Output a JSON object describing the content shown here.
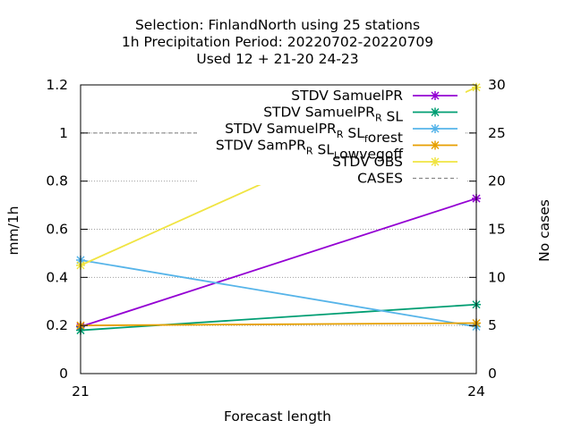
{
  "chart_data": {
    "type": "line",
    "title_lines": [
      "Selection: FinlandNorth using    25 stations",
      "1h Precipitation   Period: 20220702-20220709",
      "Used  12 + 21-20 24-23"
    ],
    "xlabel": "Forecast length",
    "ylabel": "mm/1h",
    "y2label": "No cases",
    "x": [
      21,
      24
    ],
    "xticks": [
      "21",
      "24"
    ],
    "ylim": [
      0,
      1.2
    ],
    "yticks": [
      "0",
      "0.2",
      "0.4",
      "0.6",
      "0.8",
      "1",
      "1.2"
    ],
    "y2lim": [
      0,
      30
    ],
    "y2ticks": [
      "0",
      "5",
      "10",
      "15",
      "20",
      "25",
      "30"
    ],
    "grid": true,
    "legend_position": "top-right",
    "series": [
      {
        "name": "STDV SamuelPR",
        "name_parts": [
          [
            "STDV SamuelPR",
            "n"
          ]
        ],
        "values": [
          0.195,
          0.728
        ],
        "color": "#9400d3",
        "dash": ""
      },
      {
        "name": "STDV SamuelPR_R SL",
        "name_parts": [
          [
            "STDV SamuelPR",
            "n"
          ],
          [
            "R",
            "sub"
          ],
          [
            " SL",
            "n"
          ]
        ],
        "values": [
          0.18,
          0.287
        ],
        "color": "#009e73",
        "dash": ""
      },
      {
        "name": "STDV SamuelPR_R SL_forest",
        "name_parts": [
          [
            "STDV SamuelPR",
            "n"
          ],
          [
            "R",
            "sub"
          ],
          [
            " SL",
            "n"
          ],
          [
            "f",
            "sub"
          ],
          [
            "orest",
            "n"
          ]
        ],
        "values": [
          0.472,
          0.195
        ],
        "color": "#56b4e9",
        "dash": ""
      },
      {
        "name": "STDV SamPR_R SL_Lowvegoff",
        "name_parts": [
          [
            "STDV SamPR",
            "n"
          ],
          [
            "R",
            "sub"
          ],
          [
            " SL",
            "n"
          ],
          [
            "L",
            "sub"
          ],
          [
            "owvegoff",
            "n"
          ]
        ],
        "values": [
          0.2,
          0.21
        ],
        "color": "#e69f00",
        "dash": ""
      },
      {
        "name": "STDV OBS",
        "name_parts": [
          [
            "STDV OBS",
            "n"
          ]
        ],
        "values": [
          0.45,
          1.19
        ],
        "color": "#f0e442",
        "dash": ""
      },
      {
        "name": "CASES",
        "name_parts": [
          [
            "CASES",
            "n"
          ]
        ],
        "values": [
          25,
          25
        ],
        "axis": "y2",
        "color": "#888888",
        "dash": "4,3"
      }
    ]
  }
}
